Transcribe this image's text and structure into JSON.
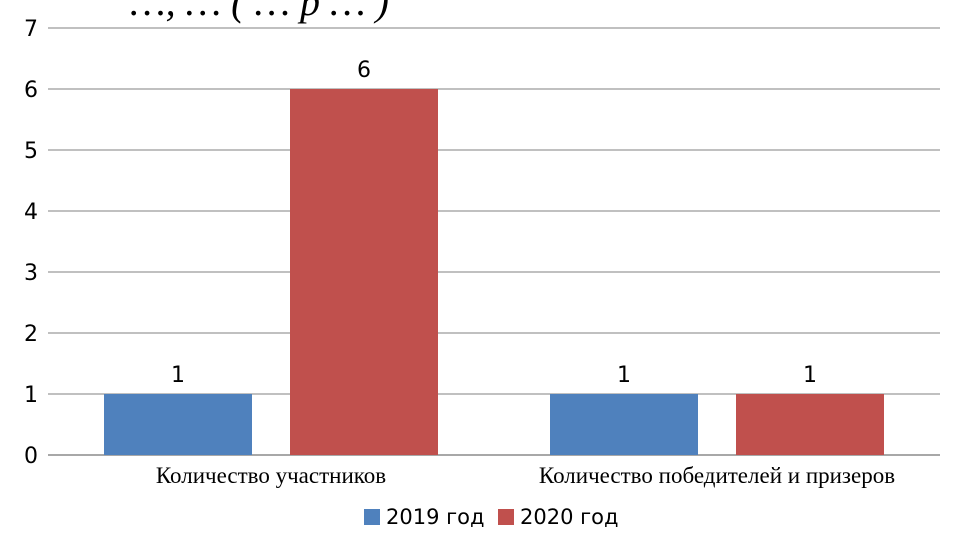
{
  "header": {
    "partial_text": "…, … ( … р … )"
  },
  "chart_data": {
    "type": "bar",
    "categories": [
      "Количество участников",
      "Количество победителей и призеров"
    ],
    "series": [
      {
        "name": "2019 год",
        "values": [
          1,
          1
        ],
        "color": "#4F81BD"
      },
      {
        "name": "2020 год",
        "values": [
          6,
          1
        ],
        "color": "#C0504D"
      }
    ],
    "yticks": [
      0,
      1,
      2,
      3,
      4,
      5,
      6,
      7
    ],
    "ylim": [
      0,
      7
    ],
    "grid": true,
    "legend": "bottom"
  }
}
